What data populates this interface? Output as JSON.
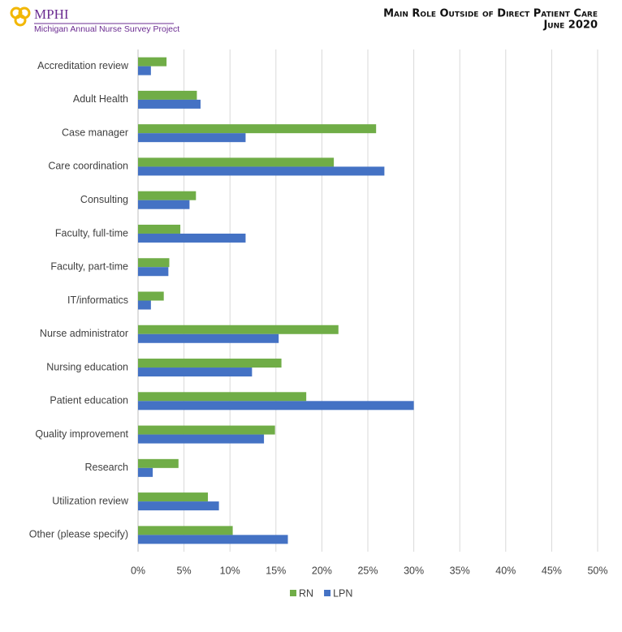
{
  "header": {
    "logo": "MPHI",
    "project": "Michigan Annual Nurse Survey Project"
  },
  "chart_data": {
    "type": "hbar",
    "title": "Main Role Outside of Direct Patient Care",
    "subtitle": "June 2020",
    "categories": [
      "Accreditation review",
      "Adult Health",
      "Case manager",
      "Care coordination",
      "Consulting",
      "Faculty, full-time",
      "Faculty, part-time",
      "IT/informatics",
      "Nurse administrator",
      "Nursing education",
      "Patient education",
      "Quality improvement",
      "Research",
      "Utilization review",
      "Other (please specify)"
    ],
    "series": [
      {
        "name": "RN",
        "color": "#70ad47",
        "values": [
          3.1,
          6.4,
          25.9,
          21.3,
          6.3,
          4.6,
          3.4,
          2.8,
          21.8,
          15.6,
          18.3,
          14.9,
          4.4,
          7.6,
          10.3
        ]
      },
      {
        "name": "LPN",
        "color": "#4472c4",
        "values": [
          1.4,
          6.8,
          11.7,
          26.8,
          5.6,
          11.7,
          3.3,
          1.4,
          15.3,
          12.4,
          30.0,
          13.7,
          1.6,
          8.8,
          16.3
        ]
      }
    ],
    "xlim": [
      0,
      50
    ],
    "xticks": [
      {
        "value": 0,
        "label": "0%"
      },
      {
        "value": 5,
        "label": "5%"
      },
      {
        "value": 10,
        "label": "10%"
      },
      {
        "value": 15,
        "label": "15%"
      },
      {
        "value": 20,
        "label": "20%"
      },
      {
        "value": 25,
        "label": "25%"
      },
      {
        "value": 30,
        "label": "30%"
      },
      {
        "value": 35,
        "label": "35%"
      },
      {
        "value": 40,
        "label": "40%"
      },
      {
        "value": 45,
        "label": "45%"
      },
      {
        "value": 50,
        "label": "50%"
      }
    ],
    "grid": true,
    "legend": "bottom"
  }
}
